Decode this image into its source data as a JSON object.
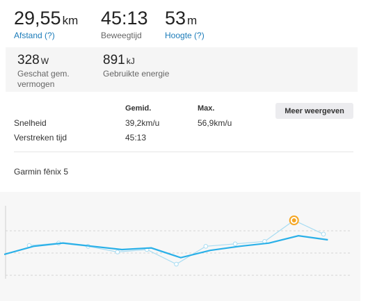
{
  "summary": {
    "distance": {
      "value": "29,55",
      "unit": "km",
      "label": "Afstand (?)"
    },
    "moving_time": {
      "value": "45:13",
      "label": "Beweegtijd"
    },
    "elevation": {
      "value": "53",
      "unit": "m",
      "label": "Hoogte (?)"
    }
  },
  "secondary": {
    "power": {
      "value": "328",
      "unit": "W",
      "label_line1": "Geschat gem.",
      "label_line2": "vermogen"
    },
    "energy": {
      "value": "891",
      "unit": "kJ",
      "label": "Gebruikte energie"
    }
  },
  "splits": {
    "col_avg": "Gemid.",
    "col_max": "Max.",
    "more_button": "Meer weergeven",
    "rows": [
      {
        "label": "Snelheid",
        "avg": "39,2km/u",
        "max": "56,9km/u"
      },
      {
        "label": "Verstreken tijd",
        "avg": "45:13",
        "max": ""
      }
    ]
  },
  "device": "Garmin fēnix 5",
  "colors": {
    "link": "#1a7bb9",
    "primary_line": "#2ab0e8",
    "secondary_line": "#a8dcf2",
    "highlight": "#f5a623"
  },
  "chart_data": {
    "type": "line",
    "series": [
      {
        "values": [
          3.0,
          4.0,
          4.4,
          4.0,
          3.6,
          3.8,
          2.6,
          3.5,
          4.0,
          4.4,
          5.3,
          4.8
        ]
      },
      {
        "values": [
          4.1,
          4.4,
          4.0,
          3.3,
          3.6,
          1.8,
          4.0,
          4.3,
          4.6,
          7.2,
          5.5
        ]
      }
    ],
    "highlight_index": 9,
    "ylim": [
      0,
      9
    ]
  }
}
